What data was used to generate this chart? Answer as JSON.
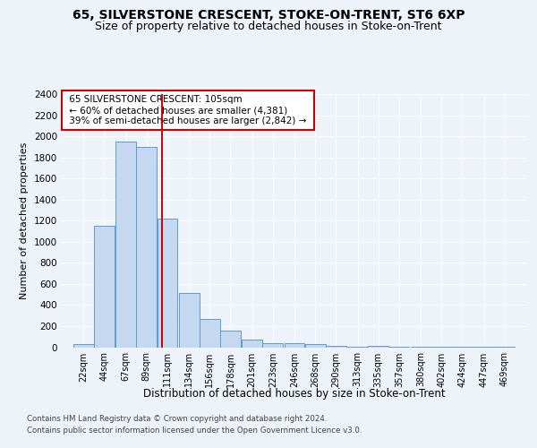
{
  "title1": "65, SILVERSTONE CRESCENT, STOKE-ON-TRENT, ST6 6XP",
  "title2": "Size of property relative to detached houses in Stoke-on-Trent",
  "xlabel": "Distribution of detached houses by size in Stoke-on-Trent",
  "ylabel": "Number of detached properties",
  "footer1": "Contains HM Land Registry data © Crown copyright and database right 2024.",
  "footer2": "Contains public sector information licensed under the Open Government Licence v3.0.",
  "annotation_line1": "65 SILVERSTONE CRESCENT: 105sqm",
  "annotation_line2": "← 60% of detached houses are smaller (4,381)",
  "annotation_line3": "39% of semi-detached houses are larger (2,842) →",
  "bar_color": "#c5d8f0",
  "bar_edge_color": "#5b9bd5",
  "vline_color": "#cc0000",
  "vline_x": 105,
  "annotation_box_edge_color": "#cc0000",
  "categories": [
    22,
    44,
    67,
    89,
    111,
    134,
    156,
    178,
    201,
    223,
    246,
    268,
    290,
    313,
    335,
    357,
    380,
    402,
    424,
    447,
    469
  ],
  "bin_width": 22,
  "values": [
    30,
    1150,
    1950,
    1900,
    1220,
    510,
    265,
    155,
    75,
    40,
    35,
    30,
    10,
    5,
    10,
    5,
    2,
    5,
    2,
    5,
    2
  ],
  "ylim": [
    0,
    2400
  ],
  "yticks": [
    0,
    200,
    400,
    600,
    800,
    1000,
    1200,
    1400,
    1600,
    1800,
    2000,
    2200,
    2400
  ],
  "background_color": "#eef2f9",
  "plot_bg_color": "#eef2f9",
  "grid_color": "#ffffff",
  "title1_fontsize": 10,
  "title2_fontsize": 9,
  "xlabel_fontsize": 8.5,
  "ylabel_fontsize": 8
}
